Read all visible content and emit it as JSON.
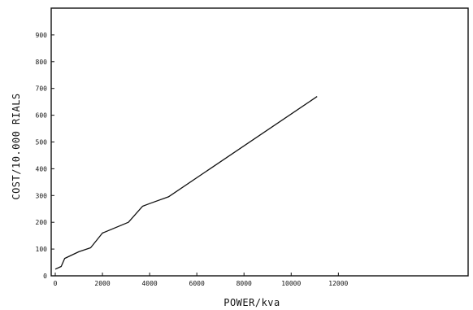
{
  "chart_data": {
    "type": "line",
    "title": "",
    "xlabel": "POWER/kva",
    "ylabel": "COST/10.000  RIALS",
    "xlim": [
      0,
      17500
    ],
    "ylim": [
      0,
      1000
    ],
    "xticks": [
      0,
      2000,
      4000,
      6000,
      8000,
      10000,
      12000
    ],
    "xtick_labels": [
      "0",
      "2000",
      "4000",
      "6000",
      "8000",
      "10000",
      "12000"
    ],
    "yticks": [
      0,
      100,
      200,
      300,
      400,
      500,
      600,
      700,
      800,
      900
    ],
    "ytick_labels": [
      "0",
      "100",
      "200",
      "300",
      "400",
      "500",
      "600",
      "700",
      "800",
      "900"
    ],
    "grid": false,
    "legend": "none",
    "series": [
      {
        "x": [
          0,
          250,
          400,
          1000,
          1500,
          2000,
          3100,
          3700,
          4000,
          4800,
          11100
        ],
        "y": [
          25,
          35,
          65,
          90,
          105,
          160,
          200,
          260,
          270,
          295,
          670
        ]
      }
    ],
    "colors": {
      "line": "#111111",
      "axes": "#111111",
      "background": "#ffffff"
    }
  }
}
